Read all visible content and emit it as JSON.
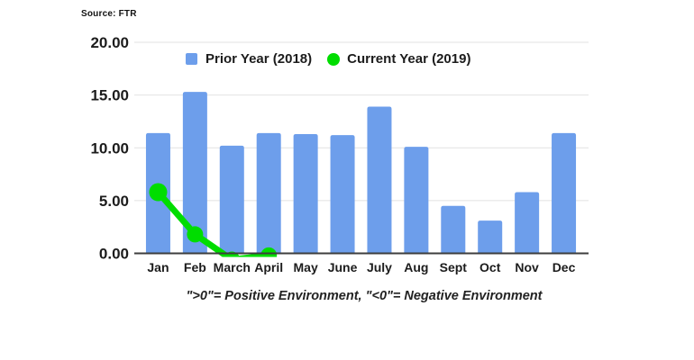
{
  "source_note": "Source: FTR",
  "legend": {
    "prior_label": "Prior Year (2018)",
    "current_label": "Current Year (2019)"
  },
  "caption": "\">0\"= Positive Environment, \"<0\"= Negative Environment",
  "colors": {
    "bar_blue": "#6d9eeb",
    "line_green": "#00dd00",
    "gridline": "#e2e2e2",
    "axis": "#3d3d3d",
    "label_text": "#1c1c1c"
  },
  "chart_data": {
    "type": "bar",
    "subtype": "combo-bar-line",
    "categories": [
      "Jan",
      "Feb",
      "March",
      "April",
      "May",
      "June",
      "July",
      "Aug",
      "Sept",
      "Oct",
      "Nov",
      "Dec"
    ],
    "series": [
      {
        "name": "Prior Year (2018)",
        "kind": "bar",
        "color": "#6d9eeb",
        "values": [
          11.4,
          15.3,
          10.2,
          11.4,
          11.3,
          11.2,
          13.9,
          10.1,
          4.5,
          3.1,
          5.8,
          11.4
        ]
      },
      {
        "name": "Current Year (2019)",
        "kind": "line",
        "color": "#00dd00",
        "values": [
          5.8,
          1.8,
          -0.6,
          -0.2,
          null,
          null,
          null,
          null,
          null,
          null,
          null,
          null
        ]
      }
    ],
    "title": "",
    "xlabel": "",
    "ylabel": "",
    "y_tick_labels": [
      "0.00",
      "5.00",
      "10.00",
      "15.00",
      "20.00"
    ],
    "ylim": [
      0,
      20
    ],
    "grid": true,
    "legend_position": "top",
    "annotation": "\">0\"= Positive Environment, \"<0\"= Negative Environment"
  }
}
